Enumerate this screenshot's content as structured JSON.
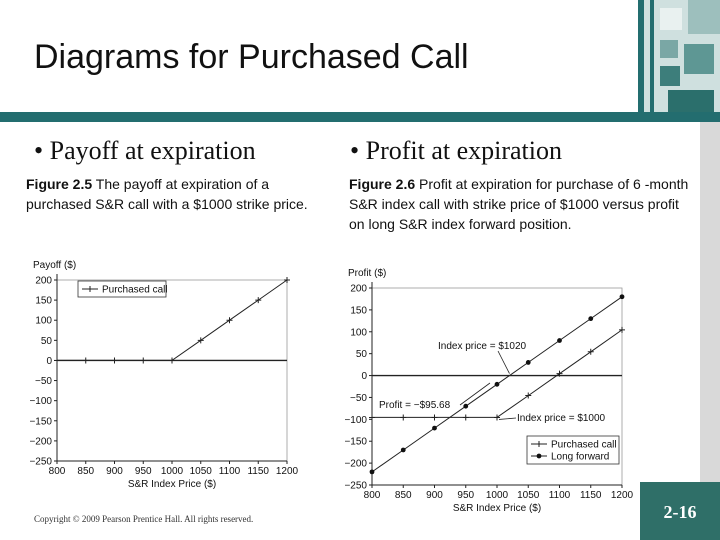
{
  "slide": {
    "title": "Diagrams for Purchased Call",
    "copyright": "Copyright © 2009 Pearson Prentice Hall. All rights reserved.",
    "page_number": "2-16"
  },
  "left": {
    "bullet": "Payoff at expiration",
    "fig_label": "Figure 2.5",
    "fig_text": " The payoff at expiration of a purchased S&R call with a $1000 strike price."
  },
  "right": {
    "bullet": "Profit at expiration",
    "fig_label": "Figure 2.6",
    "fig_text": " Profit at expiration for purchase of 6 -month S&R index call with strike price of $1000 versus profit on long S&R index forward position."
  },
  "colors": {
    "stripe": "#236d6f",
    "page_box": "#2f6f68",
    "deco": "#cfe0df"
  },
  "chart_data": [
    {
      "type": "line",
      "ylabel": "Payoff ($)",
      "xlabel": "S&R Index Price ($)",
      "x_ticks": [
        800,
        850,
        900,
        950,
        1000,
        1050,
        1100,
        1150,
        1200
      ],
      "y_ticks": [
        200,
        150,
        100,
        50,
        0,
        -50,
        -100,
        -150,
        -200,
        -250
      ],
      "y_tick_labels": [
        "200",
        "150",
        "100",
        "50",
        "0",
        "−50",
        "−100",
        "−150",
        "−200",
        "−250"
      ],
      "xlim": [
        800,
        1200
      ],
      "ylim": [
        -250,
        200
      ],
      "legend": "top-left",
      "series": [
        {
          "name": "Purchased call",
          "marker": "+",
          "x": [
            800,
            850,
            900,
            950,
            1000,
            1050,
            1100,
            1150,
            1200
          ],
          "values": [
            0,
            0,
            0,
            0,
            0,
            50,
            100,
            150,
            200
          ]
        }
      ]
    },
    {
      "type": "line",
      "ylabel": "Profit ($)",
      "xlabel": "S&R Index Price ($)",
      "x_ticks": [
        800,
        850,
        900,
        950,
        1000,
        1050,
        1100,
        1150,
        1200
      ],
      "y_ticks": [
        200,
        150,
        100,
        50,
        0,
        -50,
        -100,
        -150,
        -200,
        -250
      ],
      "y_tick_labels": [
        "200",
        "150",
        "100",
        "50",
        "0",
        "−50",
        "−100",
        "−150",
        "−200",
        "−250"
      ],
      "xlim": [
        800,
        1200
      ],
      "ylim": [
        -250,
        200
      ],
      "legend": "bottom-right",
      "series": [
        {
          "name": "Purchased call",
          "marker": "+",
          "x": [
            800,
            850,
            900,
            950,
            1000,
            1050,
            1100,
            1150,
            1200
          ],
          "values": [
            -95.68,
            -95.68,
            -95.68,
            -95.68,
            -95.68,
            -45.68,
            4.32,
            54.32,
            104.32
          ]
        },
        {
          "name": "Long forward",
          "marker": "•",
          "x": [
            800,
            850,
            900,
            950,
            1000,
            1050,
            1100,
            1150,
            1200
          ],
          "values": [
            -220,
            -170,
            -120,
            -70,
            -20,
            30,
            80,
            130,
            180
          ]
        }
      ],
      "annotations": [
        {
          "text": "Index price = $1020",
          "x": 1020,
          "y": 0
        },
        {
          "text": "Profit = −$95.68",
          "x": 800,
          "y": -95.68
        },
        {
          "text": "Index price = $1000",
          "x": 1000,
          "y": -95.68
        }
      ]
    }
  ]
}
